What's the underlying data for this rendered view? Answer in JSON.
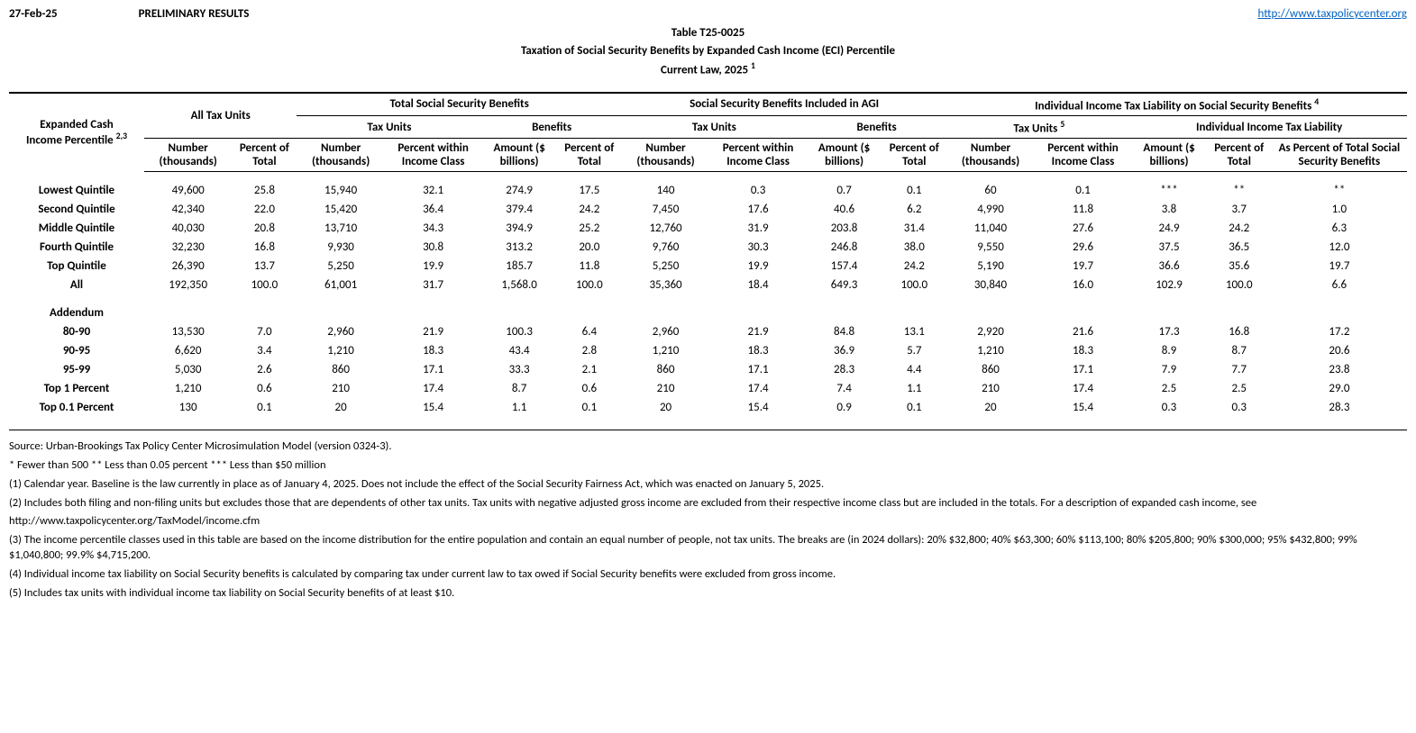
{
  "header": {
    "date": "27-Feb-25",
    "status": "PRELIMINARY RESULTS",
    "url": "http://www.taxpolicycenter.org"
  },
  "title": {
    "l1": "Table T25-0025",
    "l2": "Taxation of Social Security Benefits by Expanded Cash Income (ECI) Percentile",
    "l3": "Current Law, 2025",
    "l3_sup": "1"
  },
  "stub": {
    "label_l1": "Expanded Cash",
    "label_l2": "Income Percentile",
    "sup": "2,3"
  },
  "group_headers": {
    "g1": "All Tax Units",
    "g2": "Total Social Security Benefits",
    "g3": "Social Security Benefits Included in AGI",
    "g4": "Individual Income Tax Liability on Social Security Benefits",
    "g4_sup": "4",
    "sub_tax_units": "Tax Units",
    "sub_tax_units_5": "Tax Units",
    "sub_tax_units_5_sup": "5",
    "sub_benefits": "Benefits",
    "sub_liab": "Individual Income Tax Liability"
  },
  "col_headers": {
    "c1": "Number (thousands)",
    "c2": "Percent of Total",
    "c3": "Number (thousands)",
    "c4": "Percent within Income Class",
    "c5": "Amount ($ billions)",
    "c6": "Percent of Total",
    "c7": "Number (thousands)",
    "c8": "Percent within Income Class",
    "c9": "Amount ($ billions)",
    "c10": "Percent of Total",
    "c11": "Number (thousands)",
    "c12": "Percent within Income Class",
    "c13": "Amount ($ billions)",
    "c14": "Percent of Total",
    "c15": "As Percent of Total Social Security Benefits"
  },
  "rows": [
    {
      "label": "Lowest Quintile",
      "v": [
        "49,600",
        "25.8",
        "15,940",
        "32.1",
        "274.9",
        "17.5",
        "140",
        "0.3",
        "0.7",
        "0.1",
        "60",
        "0.1",
        "***",
        "**",
        "**"
      ]
    },
    {
      "label": "Second Quintile",
      "v": [
        "42,340",
        "22.0",
        "15,420",
        "36.4",
        "379.4",
        "24.2",
        "7,450",
        "17.6",
        "40.6",
        "6.2",
        "4,990",
        "11.8",
        "3.8",
        "3.7",
        "1.0"
      ]
    },
    {
      "label": "Middle Quintile",
      "v": [
        "40,030",
        "20.8",
        "13,710",
        "34.3",
        "394.9",
        "25.2",
        "12,760",
        "31.9",
        "203.8",
        "31.4",
        "11,040",
        "27.6",
        "24.9",
        "24.2",
        "6.3"
      ]
    },
    {
      "label": "Fourth Quintile",
      "v": [
        "32,230",
        "16.8",
        "9,930",
        "30.8",
        "313.2",
        "20.0",
        "9,760",
        "30.3",
        "246.8",
        "38.0",
        "9,550",
        "29.6",
        "37.5",
        "36.5",
        "12.0"
      ]
    },
    {
      "label": "Top Quintile",
      "v": [
        "26,390",
        "13.7",
        "5,250",
        "19.9",
        "185.7",
        "11.8",
        "5,250",
        "19.9",
        "157.4",
        "24.2",
        "5,190",
        "19.7",
        "36.6",
        "35.6",
        "19.7"
      ]
    },
    {
      "label": "All",
      "v": [
        "192,350",
        "100.0",
        "61,001",
        "31.7",
        "1,568.0",
        "100.0",
        "35,360",
        "18.4",
        "649.3",
        "100.0",
        "30,840",
        "16.0",
        "102.9",
        "100.0",
        "6.6"
      ]
    }
  ],
  "addendum_label": "Addendum",
  "addendum_rows": [
    {
      "label": "80-90",
      "v": [
        "13,530",
        "7.0",
        "2,960",
        "21.9",
        "100.3",
        "6.4",
        "2,960",
        "21.9",
        "84.8",
        "13.1",
        "2,920",
        "21.6",
        "17.3",
        "16.8",
        "17.2"
      ]
    },
    {
      "label": "90-95",
      "v": [
        "6,620",
        "3.4",
        "1,210",
        "18.3",
        "43.4",
        "2.8",
        "1,210",
        "18.3",
        "36.9",
        "5.7",
        "1,210",
        "18.3",
        "8.9",
        "8.7",
        "20.6"
      ]
    },
    {
      "label": "95-99",
      "v": [
        "5,030",
        "2.6",
        "860",
        "17.1",
        "33.3",
        "2.1",
        "860",
        "17.1",
        "28.3",
        "4.4",
        "860",
        "17.1",
        "7.9",
        "7.7",
        "23.8"
      ]
    },
    {
      "label": "Top 1 Percent",
      "v": [
        "1,210",
        "0.6",
        "210",
        "17.4",
        "8.7",
        "0.6",
        "210",
        "17.4",
        "7.4",
        "1.1",
        "210",
        "17.4",
        "2.5",
        "2.5",
        "29.0"
      ]
    },
    {
      "label": "Top 0.1 Percent",
      "v": [
        "130",
        "0.1",
        "20",
        "15.4",
        "1.1",
        "0.1",
        "20",
        "15.4",
        "0.9",
        "0.1",
        "20",
        "15.4",
        "0.3",
        "0.3",
        "28.3"
      ]
    }
  ],
  "footnotes": {
    "source": "Source: Urban-Brookings Tax Policy Center Microsimulation Model (version 0324-3).",
    "keys": "* Fewer than 500   ** Less than 0.05 percent   *** Less than $50 million",
    "n1": "(1) Calendar year. Baseline is the law currently in place as of January 4, 2025. Does not include the effect of the Social Security Fairness Act, which was enacted on January 5, 2025.",
    "n2a": "(2) Includes both filing and non-filing units but excludes those that are dependents of other tax units. Tax units with negative adjusted gross income are excluded from their respective income class but are included in the totals. For a description of expanded cash income, see",
    "n2b": "http://www.taxpolicycenter.org/TaxModel/income.cfm",
    "n3": "(3) The income percentile classes used in this table are based on the income distribution for the entire population and contain an equal number of people, not tax units. The breaks are (in 2024 dollars): 20% $32,800; 40% $63,300; 60% $113,100; 80% $205,800; 90% $300,000; 95% $432,800; 99% $1,040,800; 99.9% $4,715,200.",
    "n4": "(4) Individual income tax liability on Social Security benefits is calculated by comparing tax under current law to tax owed if Social Security benefits were excluded from gross income.",
    "n5": "(5) Includes tax units with individual income tax liability on Social Security benefits of at least $10."
  }
}
